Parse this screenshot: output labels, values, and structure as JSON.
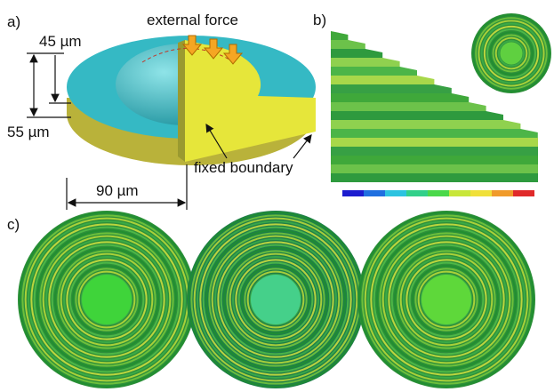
{
  "panels": {
    "a": {
      "label": "a)",
      "dim_top": "45 µm",
      "dim_bottom": "55 µm",
      "dim_width": "90 µm",
      "force_label": "external force",
      "boundary_label": "fixed boundary"
    },
    "b": {
      "label": "b)"
    },
    "c": {
      "label": "c)"
    }
  }
}
